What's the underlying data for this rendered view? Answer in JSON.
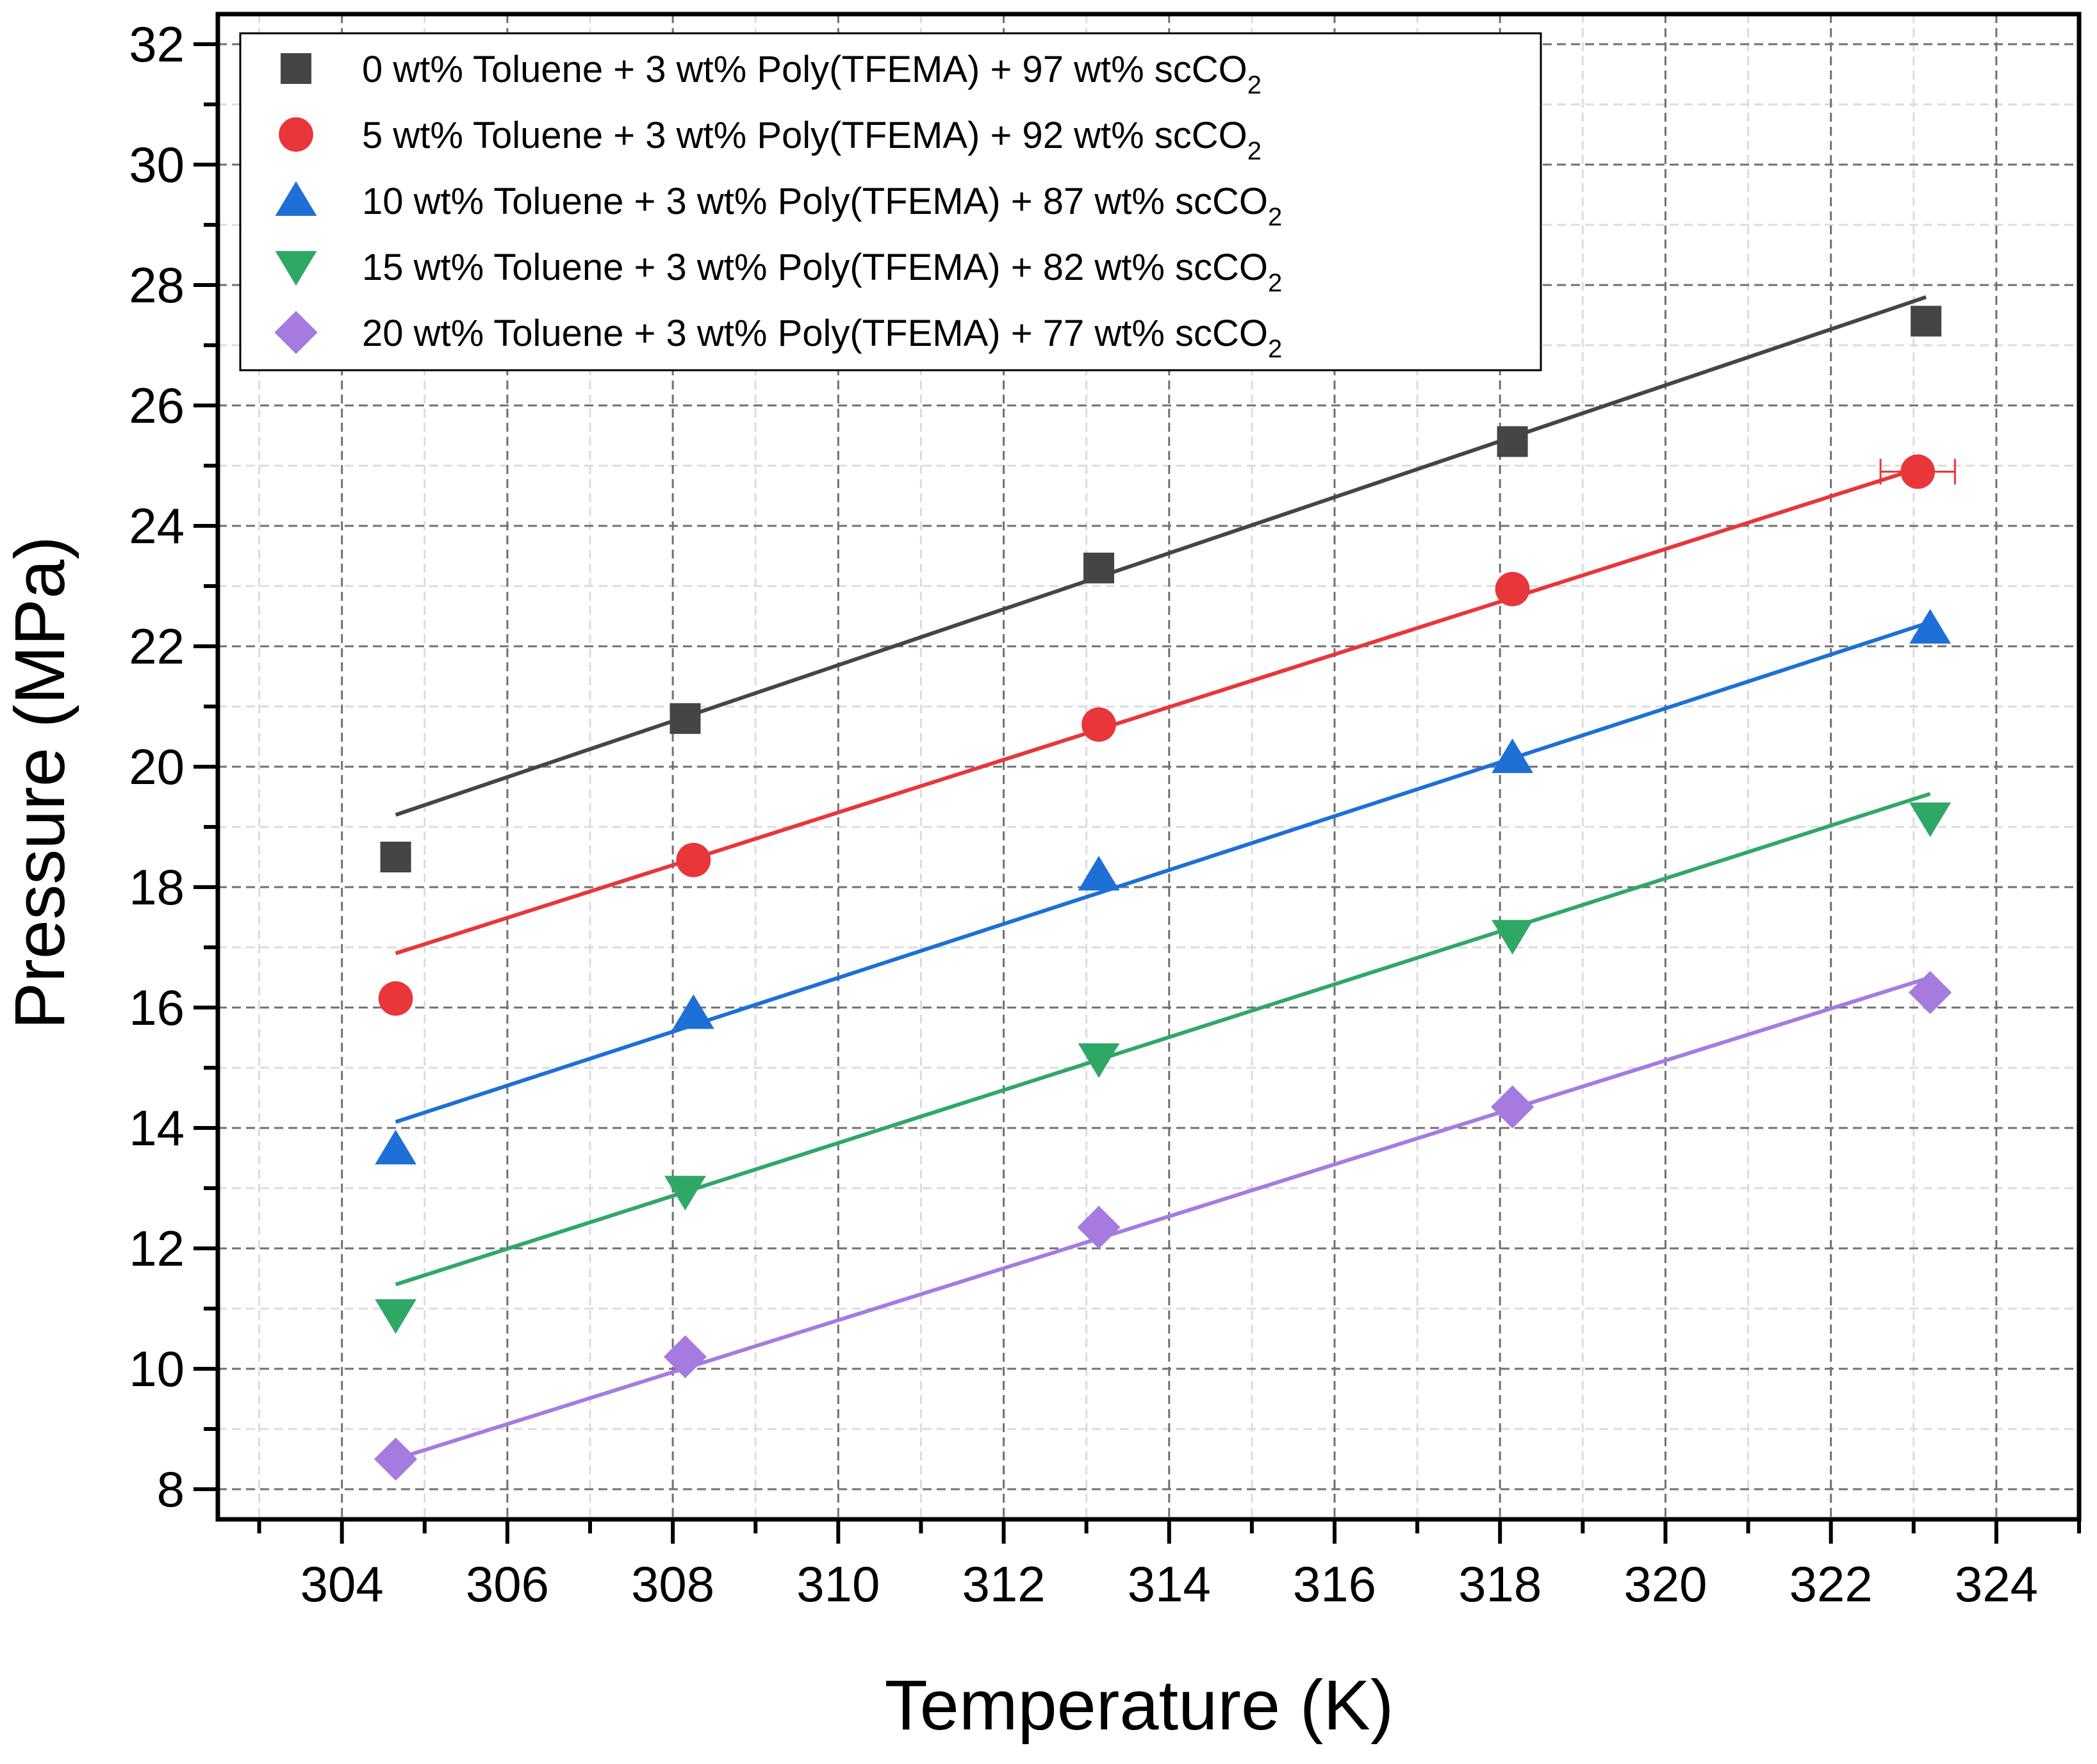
{
  "chart_data": {
    "type": "scatter",
    "xlabel": "Temperature (K)",
    "ylabel": "Pressure (MPa)",
    "xlim": [
      302.5,
      325.0
    ],
    "ylim": [
      7.5,
      32.5
    ],
    "x_ticks": [
      "304",
      "306",
      "308",
      "310",
      "312",
      "314",
      "316",
      "318",
      "320",
      "322",
      "324"
    ],
    "y_ticks": [
      "8",
      "10",
      "12",
      "14",
      "16",
      "18",
      "20",
      "22",
      "24",
      "26",
      "28",
      "30",
      "32"
    ],
    "grid": true,
    "legend_position": "top-left",
    "series": [
      {
        "name_main": "0 wt% Toluene + 3 wt% Poly(TFEMA) + 97 wt% scCO",
        "name_sub": "2",
        "marker": "square",
        "color": "#454545",
        "x": [
          304.65,
          308.15,
          313.15,
          318.15,
          323.15
        ],
        "y": [
          18.5,
          20.8,
          23.3,
          25.4,
          27.4
        ],
        "fit": [
          [
            304.65,
            19.2
          ],
          [
            323.15,
            27.8
          ]
        ]
      },
      {
        "name_main": "5 wt% Toluene + 3 wt% Poly(TFEMA) + 92 wt% scCO",
        "name_sub": "2",
        "marker": "circle",
        "color": "#e8363a",
        "x": [
          304.65,
          308.25,
          313.15,
          318.15,
          323.05
        ],
        "y": [
          16.15,
          18.45,
          20.7,
          22.95,
          24.9
        ],
        "fit": [
          [
            304.65,
            16.9
          ],
          [
            323.05,
            24.95
          ]
        ],
        "error_x": [
          0,
          0,
          0,
          0,
          0.45
        ]
      },
      {
        "name_main": "10 wt% Toluene + 3 wt% Poly(TFEMA) + 87 wt% scCO",
        "name_sub": "2",
        "marker": "triangle-up",
        "color": "#1e6fd6",
        "x": [
          304.65,
          308.25,
          313.15,
          318.15,
          323.2
        ],
        "y": [
          13.65,
          15.9,
          18.2,
          20.15,
          22.3
        ],
        "fit": [
          [
            304.65,
            14.1
          ],
          [
            323.2,
            22.4
          ]
        ]
      },
      {
        "name_main": "15 wt% Toluene + 3 wt% Poly(TFEMA) + 82 wt% scCO",
        "name_sub": "2",
        "marker": "triangle-down",
        "color": "#2fa866",
        "x": [
          304.65,
          308.15,
          313.15,
          318.15,
          323.2
        ],
        "y": [
          10.9,
          12.95,
          15.15,
          17.2,
          19.15
        ],
        "fit": [
          [
            304.65,
            11.4
          ],
          [
            323.2,
            19.55
          ]
        ]
      },
      {
        "name_main": "20 wt% Toluene + 3 wt% Poly(TFEMA) + 77 wt% scCO",
        "name_sub": "2",
        "marker": "diamond",
        "color": "#a57be0",
        "x": [
          304.65,
          308.15,
          313.15,
          318.15,
          323.2
        ],
        "y": [
          8.5,
          10.2,
          12.35,
          14.35,
          16.25
        ],
        "fit": [
          [
            304.65,
            8.5
          ],
          [
            323.2,
            16.5
          ]
        ]
      }
    ]
  }
}
